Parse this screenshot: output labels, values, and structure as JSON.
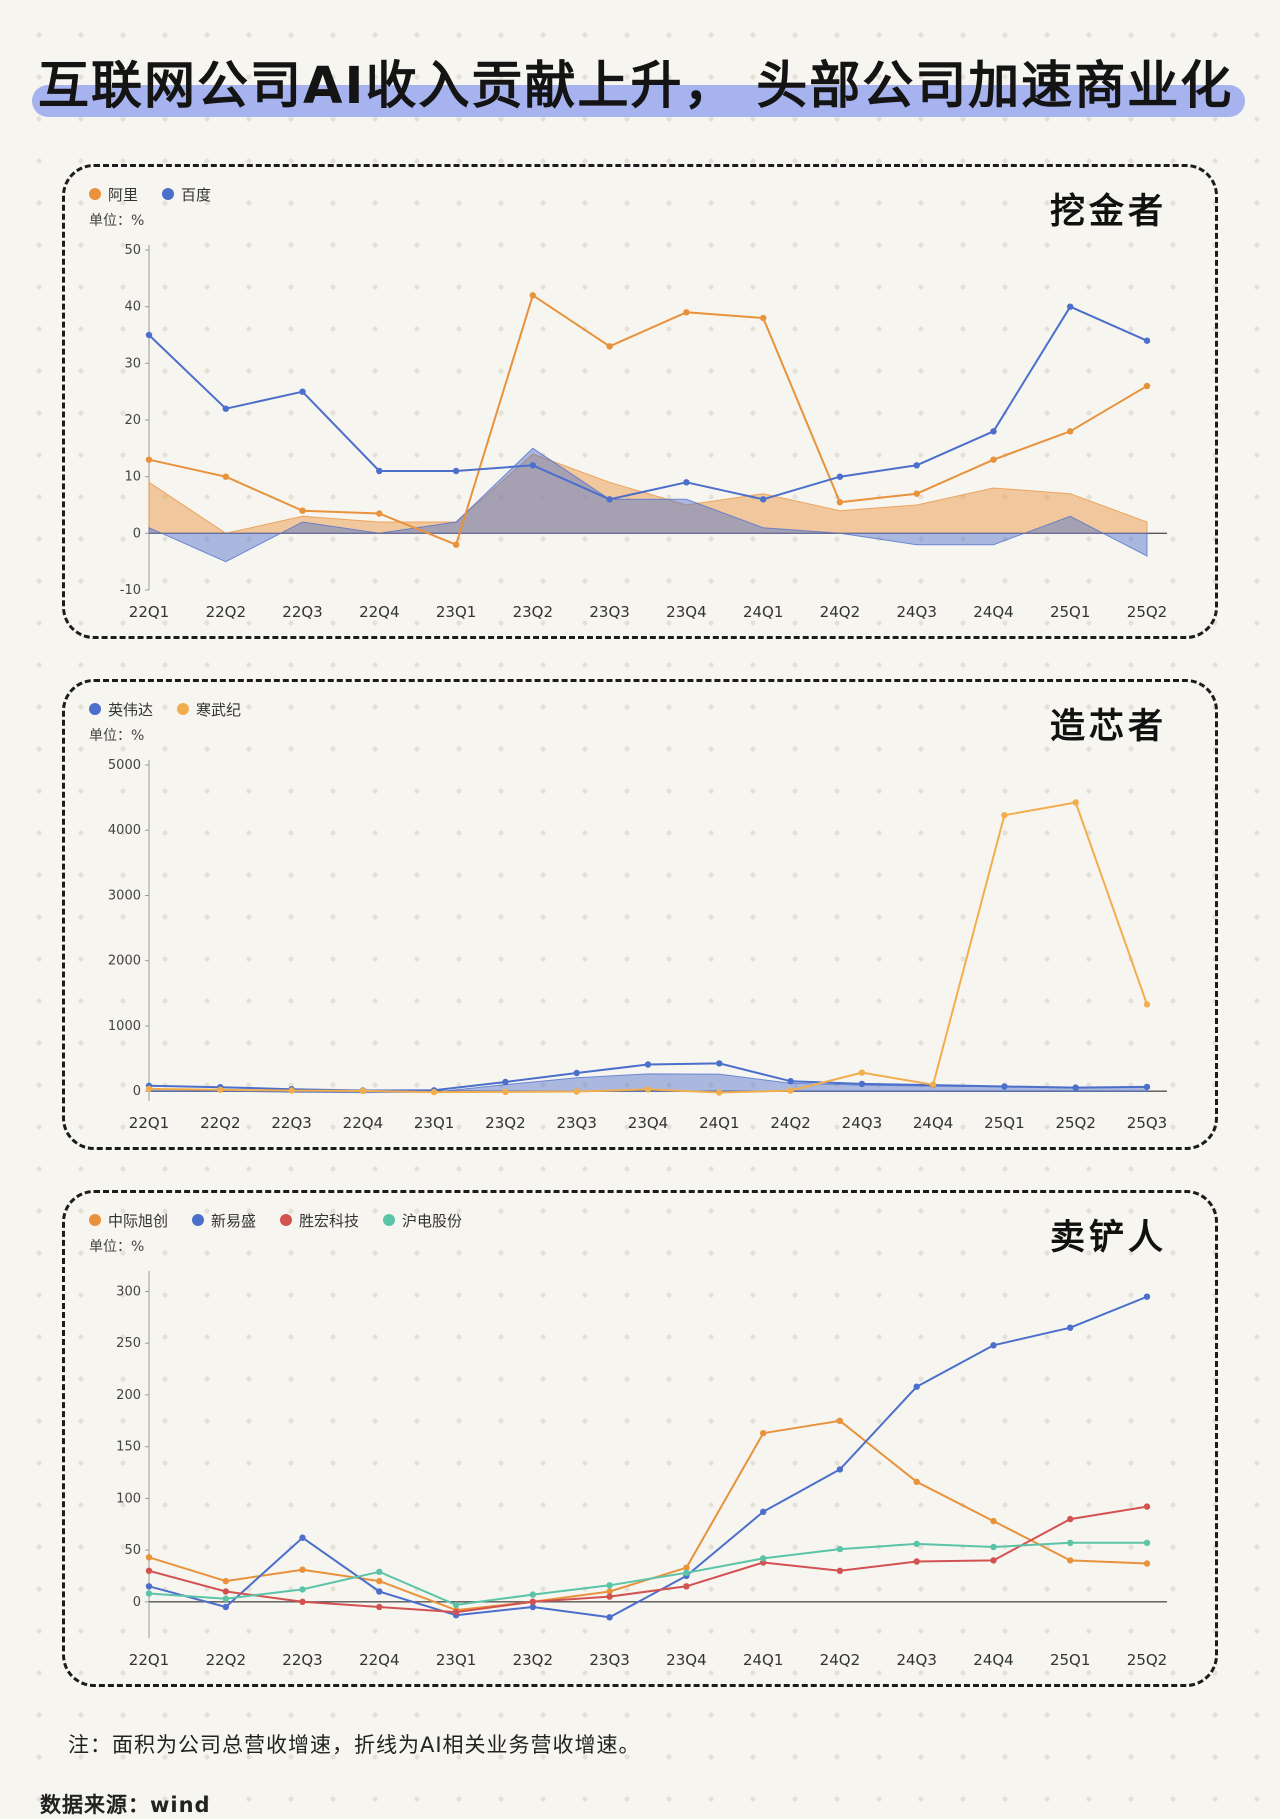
{
  "page": {
    "title": "互联网公司AI收入贡献上升， 头部公司加速商业化",
    "note": "注：面积为公司总营收增速，折线为AI相关业务营收增速。",
    "source": "数据来源：wind"
  },
  "chart_data": [
    {
      "type": "area",
      "panel_title": "挖金者",
      "unit_label": "单位：%",
      "legend": [
        {
          "label": "阿里",
          "color": "#E8923C"
        },
        {
          "label": "百度",
          "color": "#4C6FCC"
        }
      ],
      "categories": [
        "22Q1",
        "22Q2",
        "22Q3",
        "22Q4",
        "23Q1",
        "23Q2",
        "23Q3",
        "23Q4",
        "24Q1",
        "24Q2",
        "24Q3",
        "24Q4",
        "25Q1",
        "25Q2"
      ],
      "ylim": [
        -10,
        50
      ],
      "yticks": [
        -10,
        0,
        10,
        20,
        30,
        40,
        50
      ],
      "legend_position": "top-left",
      "grid": false,
      "series": [
        {
          "name": "阿里",
          "kind": "area",
          "color": "#E8923C",
          "values": [
            9,
            0,
            3,
            2,
            2,
            14,
            9,
            5,
            7,
            4,
            5,
            8,
            7,
            2
          ]
        },
        {
          "name": "百度",
          "kind": "area",
          "color": "#4C6FCC",
          "values": [
            1,
            -5,
            2,
            0,
            2,
            15,
            6,
            6,
            1,
            0,
            -2,
            -2,
            3,
            -4
          ]
        },
        {
          "name": "阿里",
          "kind": "line",
          "color": "#E8923C",
          "values": [
            13,
            10,
            4,
            3.5,
            -2,
            42,
            33,
            39,
            38,
            5.5,
            7,
            13,
            18,
            26
          ]
        },
        {
          "name": "百度",
          "kind": "line",
          "color": "#4C6FCC",
          "values": [
            35,
            22,
            25,
            11,
            11,
            12,
            6,
            9,
            6,
            10,
            12,
            18,
            40,
            34
          ]
        }
      ]
    },
    {
      "type": "area",
      "panel_title": "造芯者",
      "unit_label": "单位：%",
      "legend": [
        {
          "label": "英伟达",
          "color": "#4C6FCC"
        },
        {
          "label": "寒武纪",
          "color": "#F2AE4E"
        }
      ],
      "categories": [
        "22Q1",
        "22Q2",
        "22Q3",
        "22Q4",
        "23Q1",
        "23Q2",
        "23Q3",
        "23Q4",
        "24Q1",
        "24Q2",
        "24Q3",
        "24Q4",
        "25Q1",
        "25Q2",
        "25Q3"
      ],
      "ylim": [
        -150,
        5000
      ],
      "yticks": [
        0,
        1000,
        2000,
        3000,
        4000,
        5000
      ],
      "legend_position": "top-left",
      "grid": false,
      "series": [
        {
          "name": "英伟达",
          "kind": "area",
          "color": "#4C6FCC",
          "values": [
            46,
            3,
            -17,
            -21,
            -13,
            101,
            206,
            265,
            262,
            122,
            94,
            78,
            69,
            56,
            62
          ]
        },
        {
          "name": "英伟达",
          "kind": "line",
          "color": "#4C6FCC",
          "values": [
            83,
            61,
            31,
            11,
            14,
            141,
            279,
            409,
            427,
            154,
            112,
            93,
            73,
            56,
            66
          ]
        },
        {
          "name": "寒武纪",
          "kind": "line",
          "color": "#F2AE4E",
          "values": [
            35,
            22,
            10,
            5,
            -14,
            -10,
            -5,
            28,
            -20,
            10,
            285,
            100,
            4230,
            4425,
            1330
          ]
        }
      ]
    },
    {
      "type": "line",
      "panel_title": "卖铲人",
      "unit_label": "单位：%",
      "legend": [
        {
          "label": "中际旭创",
          "color": "#E8923C"
        },
        {
          "label": "新易盛",
          "color": "#4C6FCC"
        },
        {
          "label": "胜宏科技",
          "color": "#D25252"
        },
        {
          "label": "沪电股份",
          "color": "#5BC4A8"
        }
      ],
      "categories": [
        "22Q1",
        "22Q2",
        "22Q3",
        "22Q4",
        "23Q1",
        "23Q2",
        "23Q3",
        "23Q4",
        "24Q1",
        "24Q2",
        "24Q3",
        "24Q4",
        "25Q1",
        "25Q2"
      ],
      "ylim": [
        -35,
        315
      ],
      "yticks": [
        0,
        50,
        100,
        150,
        200,
        250,
        300
      ],
      "legend_position": "top-left",
      "grid": false,
      "series": [
        {
          "name": "中际旭创",
          "kind": "line",
          "color": "#E8923C",
          "values": [
            43,
            20,
            31,
            20,
            -8,
            0,
            10,
            33,
            163,
            175,
            116,
            78,
            40,
            37
          ]
        },
        {
          "name": "新易盛",
          "kind": "line",
          "color": "#4C6FCC",
          "values": [
            15,
            -5,
            62,
            10,
            -13,
            -5,
            -15,
            25,
            87,
            128,
            208,
            248,
            265,
            295
          ]
        },
        {
          "name": "胜宏科技",
          "kind": "line",
          "color": "#D25252",
          "values": [
            30,
            10,
            0,
            -5,
            -10,
            0,
            5,
            15,
            38,
            30,
            39,
            40,
            80,
            92
          ]
        },
        {
          "name": "沪电股份",
          "kind": "line",
          "color": "#5BC4A8",
          "values": [
            8,
            3,
            12,
            29,
            -3,
            7,
            16,
            28,
            42,
            51,
            56,
            53,
            57,
            57
          ]
        }
      ]
    }
  ]
}
